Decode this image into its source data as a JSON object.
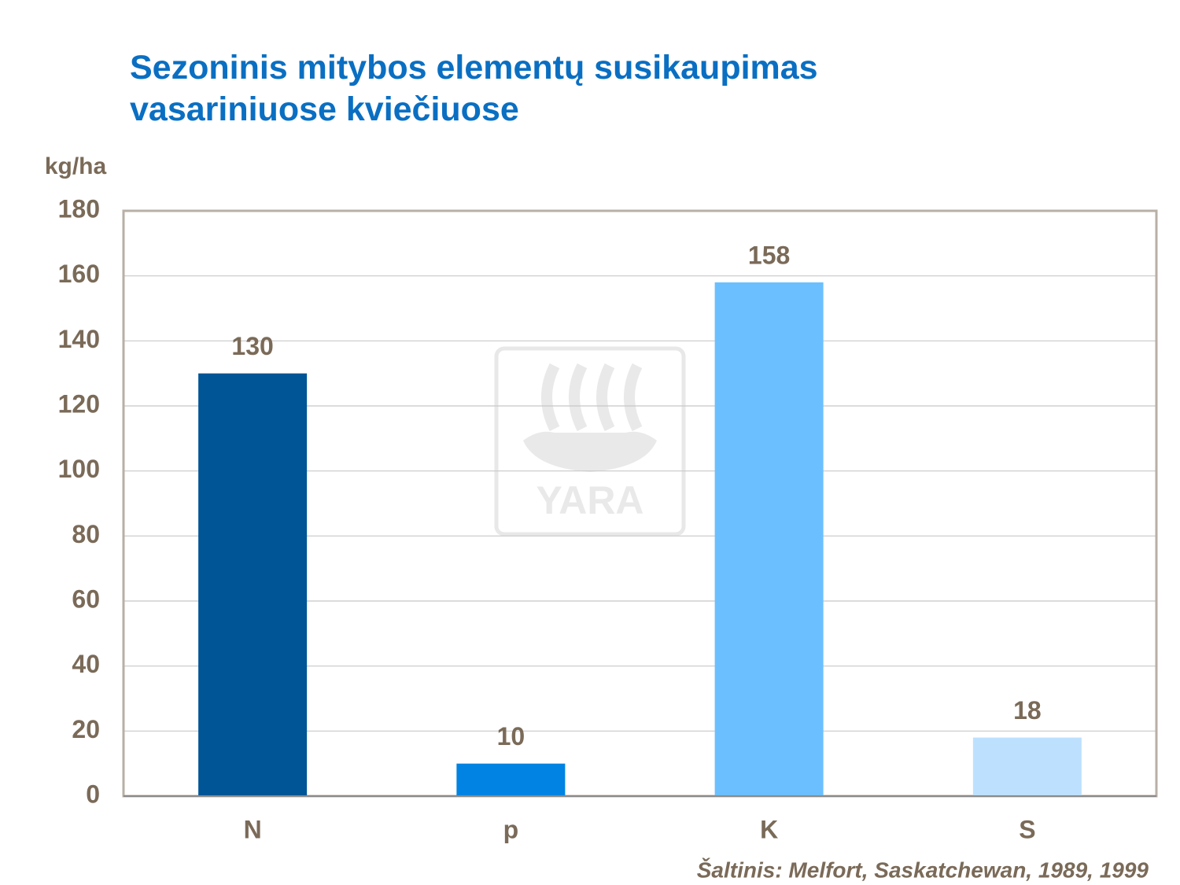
{
  "chart_data": {
    "type": "bar",
    "title": "Sezoninis mitybos elementų susikaupimas vasariniuose kviečiuose",
    "y_label": "kg/ha",
    "source": "Šaltinis:  Melfort, Saskatchewan,  1989, 1999",
    "watermark": "YARA",
    "categories": [
      "N",
      "p",
      "K",
      "S"
    ],
    "values": [
      130,
      10,
      158,
      18
    ],
    "colors": [
      "#005596",
      "#0083e2",
      "#6bbfff",
      "#bde0ff"
    ],
    "ylim": [
      0,
      180
    ],
    "yticks": [
      0,
      20,
      40,
      60,
      80,
      100,
      120,
      140,
      160,
      180
    ],
    "grid": true
  }
}
